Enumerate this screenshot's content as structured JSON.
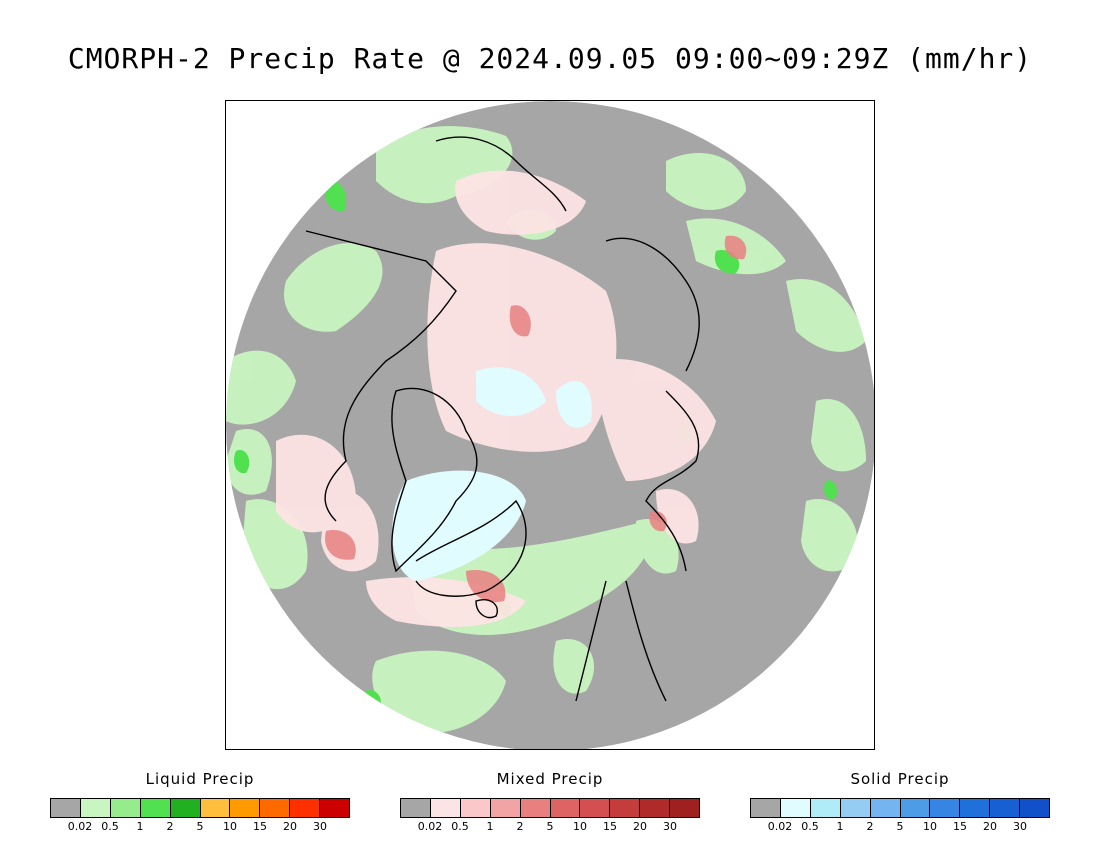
{
  "title": "CMORPH-2 Precip Rate @ 2024.09.05 09:00~09:29Z (mm/hr)",
  "legends": [
    {
      "title": "Liquid Precip",
      "colors": [
        "#a6a6a6",
        "#c8f5c0",
        "#96ec8c",
        "#50e050",
        "#20b020",
        "#ffbe3c",
        "#ff9a00",
        "#ff6a00",
        "#ff3000",
        "#cc0000"
      ],
      "ticks": [
        "0.02",
        "0.5",
        "1",
        "2",
        "5",
        "10",
        "15",
        "20",
        "30"
      ]
    },
    {
      "title": "Mixed Precip",
      "colors": [
        "#a6a6a6",
        "#fde4e4",
        "#fac8c8",
        "#f2a4a4",
        "#e88080",
        "#de6464",
        "#d45050",
        "#c43c3c",
        "#b02a2a",
        "#a02020"
      ],
      "ticks": [
        "0.02",
        "0.5",
        "1",
        "2",
        "5",
        "10",
        "15",
        "20",
        "30"
      ]
    },
    {
      "title": "Solid Precip",
      "colors": [
        "#a6a6a6",
        "#e0fcff",
        "#b0ecf8",
        "#94ccf4",
        "#74b4f0",
        "#4c9ce8",
        "#3486e2",
        "#2070dc",
        "#1660d4",
        "#1050c8"
      ],
      "ticks": [
        "0.02",
        "0.5",
        "1",
        "2",
        "5",
        "10",
        "15",
        "20",
        "30"
      ]
    }
  ]
}
